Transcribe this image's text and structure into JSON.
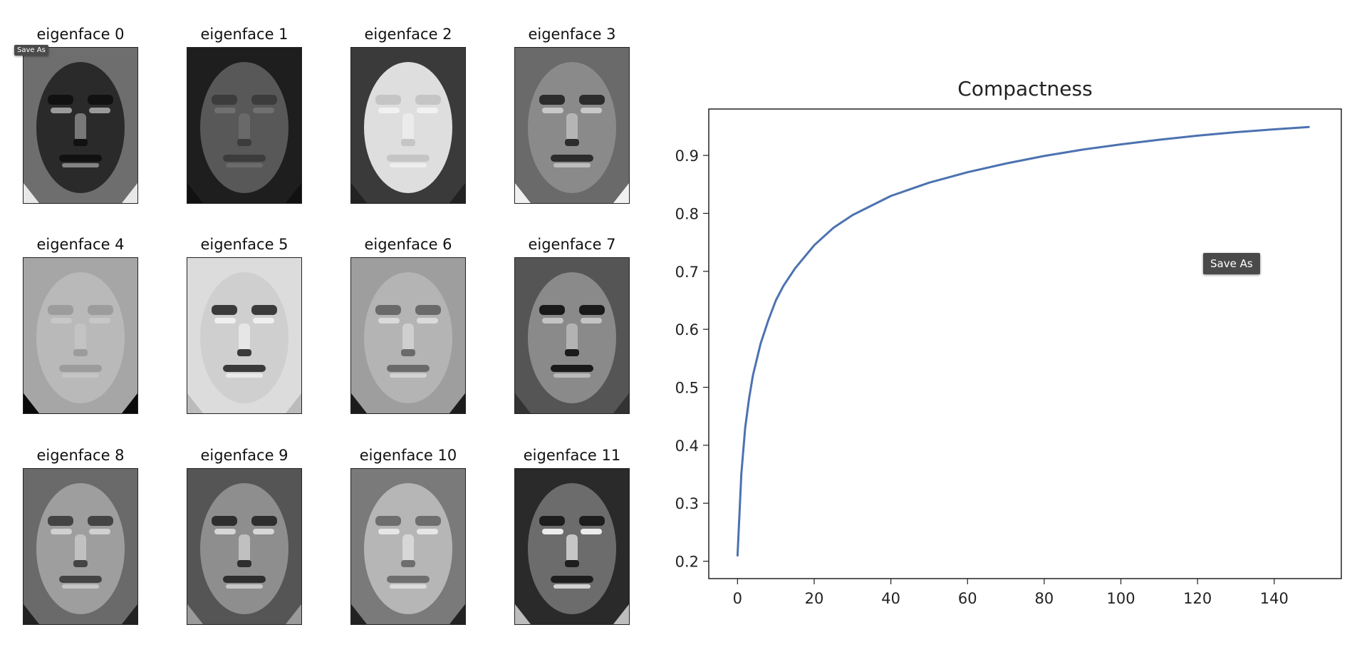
{
  "eigenfaces": [
    {
      "label": "eigenface 0"
    },
    {
      "label": "eigenface 1"
    },
    {
      "label": "eigenface 2"
    },
    {
      "label": "eigenface 3"
    },
    {
      "label": "eigenface 4"
    },
    {
      "label": "eigenface 5"
    },
    {
      "label": "eigenface 6"
    },
    {
      "label": "eigenface 7"
    },
    {
      "label": "eigenface 8"
    },
    {
      "label": "eigenface 9"
    },
    {
      "label": "eigenface 10"
    },
    {
      "label": "eigenface 11"
    }
  ],
  "tooltips": {
    "small": "Save As",
    "large": "Save As"
  },
  "chart_data": {
    "type": "line",
    "title": "Compactness",
    "xlabel": "",
    "ylabel": "",
    "xlim": [
      -7.5,
      157.5
    ],
    "ylim": [
      0.17,
      0.98
    ],
    "xticks": [
      0,
      20,
      40,
      60,
      80,
      100,
      120,
      140
    ],
    "yticks": [
      0.2,
      0.3,
      0.4,
      0.5,
      0.6,
      0.7,
      0.8,
      0.9
    ],
    "grid": false,
    "line_color": "#4c72b0",
    "series": [
      {
        "x": [
          0,
          1,
          2,
          3,
          4,
          6,
          8,
          10,
          12,
          15,
          20,
          25,
          30,
          40,
          50,
          60,
          70,
          80,
          90,
          100,
          110,
          120,
          130,
          140,
          149
        ],
        "values": [
          0.21,
          0.35,
          0.43,
          0.48,
          0.52,
          0.575,
          0.615,
          0.65,
          0.675,
          0.705,
          0.745,
          0.775,
          0.797,
          0.83,
          0.853,
          0.871,
          0.886,
          0.899,
          0.91,
          0.919,
          0.927,
          0.934,
          0.94,
          0.945,
          0.949
        ]
      }
    ]
  }
}
